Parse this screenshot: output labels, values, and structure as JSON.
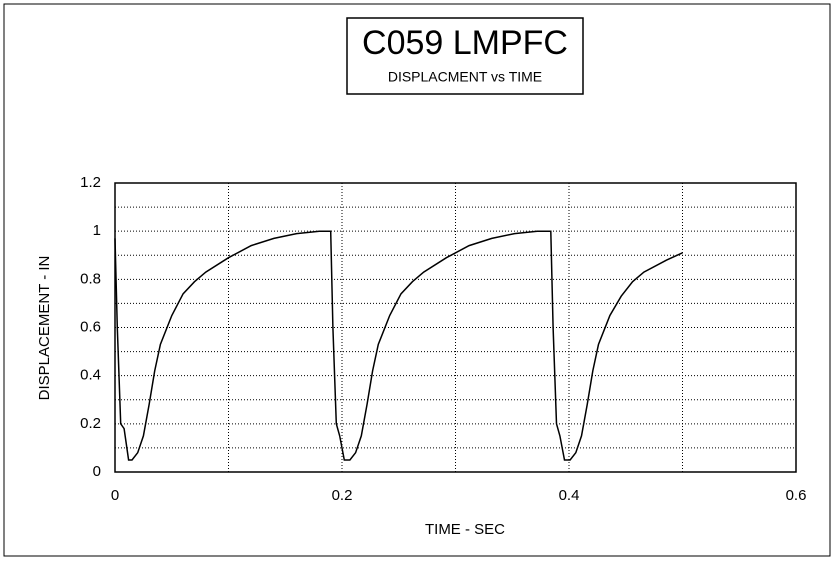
{
  "chart_data": {
    "type": "line",
    "title": "C059 LMPFC",
    "subtitle": "DISPLACMENT vs TIME",
    "x_label": "TIME - SEC",
    "y_label": "DISPLACEMENT - IN",
    "x": [
      0,
      0.002,
      0.005,
      0.008,
      0.012,
      0.015,
      0.02,
      0.025,
      0.03,
      0.035,
      0.04,
      0.05,
      0.06,
      0.07,
      0.08,
      0.1,
      0.12,
      0.14,
      0.16,
      0.18,
      0.19,
      0.192,
      0.195,
      0.198,
      0.202,
      0.207,
      0.212,
      0.217,
      0.222,
      0.227,
      0.232,
      0.242,
      0.252,
      0.262,
      0.272,
      0.292,
      0.312,
      0.332,
      0.352,
      0.372,
      0.384,
      0.386,
      0.389,
      0.392,
      0.396,
      0.401,
      0.406,
      0.411,
      0.416,
      0.421,
      0.426,
      0.436,
      0.446,
      0.456,
      0.466,
      0.486,
      0.5
    ],
    "series": [
      {
        "name": "DISPLACEMENT",
        "color": "#000000",
        "values": [
          0.97,
          0.6,
          0.2,
          0.18,
          0.05,
          0.05,
          0.08,
          0.15,
          0.28,
          0.42,
          0.53,
          0.65,
          0.74,
          0.79,
          0.83,
          0.89,
          0.94,
          0.97,
          0.99,
          1.0,
          1.0,
          0.6,
          0.2,
          0.15,
          0.05,
          0.05,
          0.08,
          0.15,
          0.28,
          0.42,
          0.53,
          0.65,
          0.74,
          0.79,
          0.83,
          0.89,
          0.94,
          0.97,
          0.99,
          1.0,
          1.0,
          0.6,
          0.2,
          0.15,
          0.05,
          0.05,
          0.08,
          0.15,
          0.28,
          0.42,
          0.53,
          0.65,
          0.73,
          0.79,
          0.83,
          0.88,
          0.91
        ]
      }
    ],
    "xlim": [
      0,
      0.6
    ],
    "xticks": [
      0,
      0.2,
      0.4,
      0.6
    ],
    "x_minor_ticks": [
      0.1,
      0.3,
      0.5
    ],
    "ylim": [
      0,
      1.2
    ],
    "yticks": [
      0,
      0.2,
      0.4,
      0.6,
      0.8,
      1,
      1.2
    ],
    "y_minor_ticks": [
      0.1,
      0.3,
      0.5,
      0.7,
      0.9,
      1.1
    ],
    "grid": true
  }
}
